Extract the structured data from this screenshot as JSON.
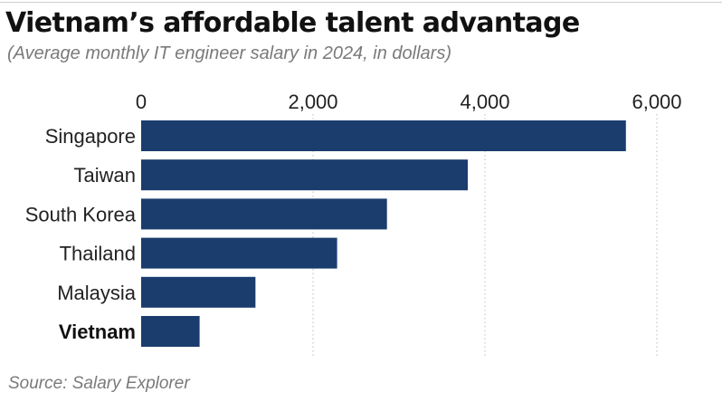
{
  "chart_data": {
    "type": "bar",
    "orientation": "horizontal",
    "title": "Vietnam’s affordable talent advantage",
    "subtitle": "(Average monthly IT engineer salary in 2024, in dollars)",
    "source": "Source: Salary Explorer",
    "categories": [
      "Singapore",
      "Taiwan",
      "South Korea",
      "Thailand",
      "Malaysia",
      "Vietnam"
    ],
    "values": [
      5640,
      3800,
      2860,
      2280,
      1330,
      680
    ],
    "highlight": "Vietnam",
    "xlim": [
      0,
      6000
    ],
    "ticks": [
      0,
      2000,
      4000,
      6000
    ],
    "tick_labels": [
      "0",
      "2,000",
      "4,000",
      "6,000"
    ],
    "axis_position": "top",
    "grid": true,
    "bar_color": "#1a3d6e",
    "grid_color": "#bdbdbd"
  }
}
